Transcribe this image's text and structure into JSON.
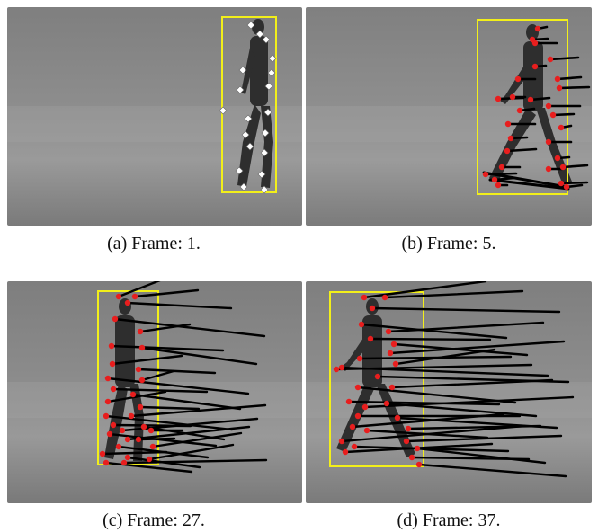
{
  "figure": {
    "panels": [
      {
        "caption": "(a) Frame: 1.",
        "marker_style": "white-diamond",
        "box_color": "#f2ef1a"
      },
      {
        "caption": "(b) Frame: 5.",
        "marker_style": "red-dot",
        "box_color": "#f2ef1a"
      },
      {
        "caption": "(c) Frame: 27.",
        "marker_style": "red-dot",
        "box_color": "#f2ef1a"
      },
      {
        "caption": "(d) Frame: 37.",
        "marker_style": "red-dot",
        "box_color": "#f2ef1a"
      }
    ],
    "colors": {
      "track_line": "#000000",
      "keypoint_red": "#e81e1e",
      "keypoint_white": "#ffffff",
      "background_gray": "#8b8b8b"
    }
  }
}
